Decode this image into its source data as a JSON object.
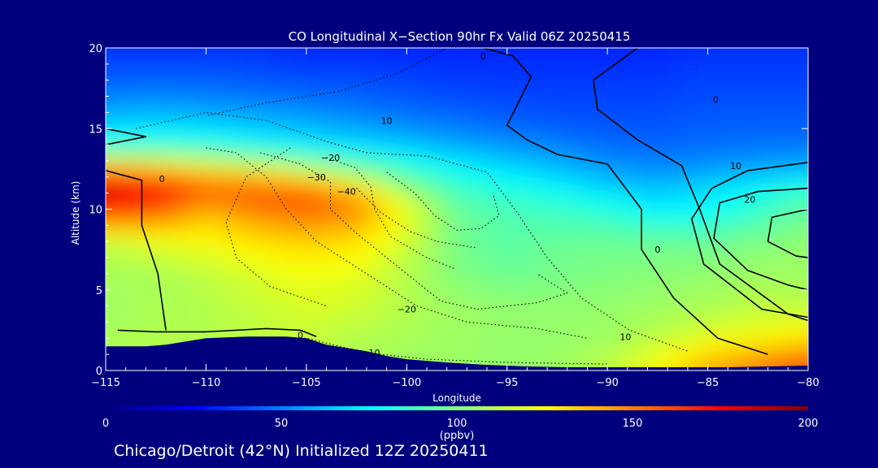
{
  "chart_data": {
    "type": "heatmap",
    "title": "CO Longitudinal X−Section 90hr  Fx Valid 06Z 20250415",
    "xlabel": "Longitude",
    "ylabel": "Altitude (km)",
    "xlim": [
      -115,
      -80
    ],
    "ylim": [
      0,
      20
    ],
    "x_ticks": [
      -115,
      -110,
      -105,
      -100,
      -95,
      -90,
      -85,
      -80
    ],
    "x_tick_labels": [
      "−115",
      "−110",
      "−105",
      "−100",
      "−95",
      "−90",
      "−85",
      "−80"
    ],
    "y_ticks": [
      0,
      5,
      10,
      15,
      20
    ],
    "y_tick_labels": [
      "0",
      "5",
      "10",
      "15",
      "20"
    ],
    "colorbar": {
      "min": 0,
      "max": 200,
      "ticks": [
        0,
        50,
        100,
        150,
        200
      ],
      "tick_labels": [
        "0",
        "50",
        "100",
        "150",
        "200"
      ],
      "unit_label": "(ppbv)",
      "colors": [
        "#00007f",
        "#0000ff",
        "#0080ff",
        "#00ffff",
        "#80ff80",
        "#ffff00",
        "#ff8000",
        "#ff0000",
        "#800000"
      ]
    },
    "co_field_ppbv": {
      "lons": [
        -115,
        -112.5,
        -110,
        -107.5,
        -105,
        -102.5,
        -100,
        -97.5,
        -95,
        -92.5,
        -90,
        -87.5,
        -85,
        -82.5,
        -80
      ],
      "alts": [
        0.5,
        2,
        4,
        6,
        8,
        10,
        11,
        12,
        13,
        14,
        15,
        16,
        17,
        18,
        20
      ],
      "values": [
        [
          110,
          110,
          110,
          110,
          112,
          108,
          106,
          105,
          104,
          106,
          112,
          125,
          140,
          150,
          160
        ],
        [
          108,
          110,
          110,
          112,
          114,
          110,
          108,
          106,
          104,
          104,
          106,
          112,
          120,
          125,
          130
        ],
        [
          106,
          108,
          110,
          114,
          118,
          116,
          110,
          106,
          104,
          104,
          104,
          106,
          108,
          112,
          112
        ],
        [
          108,
          108,
          112,
          118,
          122,
          120,
          110,
          100,
          96,
          98,
          100,
          102,
          104,
          106,
          106
        ],
        [
          112,
          120,
          124,
          130,
          134,
          130,
          116,
          98,
          92,
          96,
          96,
          96,
          96,
          100,
          104
        ],
        [
          170,
          160,
          140,
          150,
          156,
          150,
          122,
          96,
          90,
          86,
          82,
          72,
          74,
          84,
          94
        ],
        [
          185,
          176,
          158,
          162,
          160,
          142,
          108,
          88,
          82,
          78,
          70,
          66,
          72,
          80,
          88
        ],
        [
          170,
          160,
          145,
          140,
          130,
          110,
          92,
          80,
          74,
          68,
          60,
          56,
          60,
          64,
          68
        ],
        [
          120,
          118,
          112,
          104,
          94,
          86,
          78,
          70,
          64,
          58,
          52,
          50,
          52,
          54,
          56
        ],
        [
          80,
          82,
          80,
          76,
          72,
          68,
          64,
          58,
          54,
          50,
          46,
          44,
          46,
          48,
          48
        ],
        [
          70,
          72,
          70,
          66,
          62,
          58,
          54,
          50,
          46,
          44,
          42,
          42,
          44,
          44,
          44
        ],
        [
          58,
          60,
          58,
          56,
          54,
          50,
          46,
          44,
          42,
          40,
          40,
          40,
          42,
          42,
          42
        ],
        [
          50,
          52,
          50,
          48,
          46,
          44,
          42,
          40,
          38,
          38,
          38,
          38,
          40,
          40,
          40
        ],
        [
          44,
          44,
          44,
          42,
          40,
          40,
          38,
          36,
          36,
          36,
          36,
          36,
          38,
          38,
          38
        ],
        [
          34,
          34,
          34,
          34,
          32,
          32,
          32,
          32,
          32,
          32,
          32,
          32,
          34,
          34,
          34
        ]
      ]
    },
    "terrain_km": {
      "lons": [
        -115,
        -113,
        -112,
        -111,
        -110,
        -108,
        -106,
        -105,
        -104,
        -103,
        -102,
        -101,
        -100,
        -98,
        -96,
        -94,
        -92,
        -90,
        -87,
        -84,
        -82,
        -80
      ],
      "alt": [
        1.5,
        1.5,
        1.6,
        1.8,
        2.0,
        2.1,
        2.1,
        2.0,
        1.6,
        1.4,
        1.2,
        0.9,
        0.7,
        0.5,
        0.35,
        0.25,
        0.2,
        0.2,
        0.2,
        0.2,
        0.25,
        0.3
      ]
    },
    "contour_labels": [
      {
        "text": "0",
        "lon": -96.2,
        "alt": 19.5
      },
      {
        "text": "10",
        "lon": -101.0,
        "alt": 15.5
      },
      {
        "text": "−20",
        "lon": -103.8,
        "alt": 13.2
      },
      {
        "text": "−30",
        "lon": -104.5,
        "alt": 12.0
      },
      {
        "text": "−40",
        "lon": -103.0,
        "alt": 11.1
      },
      {
        "text": "0",
        "lon": -112.2,
        "alt": 11.9
      },
      {
        "text": "−20",
        "lon": -100.0,
        "alt": 3.8
      },
      {
        "text": "−10",
        "lon": -101.8,
        "alt": 1.1
      },
      {
        "text": "0",
        "lon": -105.3,
        "alt": 2.2
      },
      {
        "text": "10",
        "lon": -89.1,
        "alt": 2.1
      },
      {
        "text": "0",
        "lon": -87.5,
        "alt": 7.5
      },
      {
        "text": "20",
        "lon": -82.9,
        "alt": 10.6
      },
      {
        "text": "10",
        "lon": -83.6,
        "alt": 12.7
      },
      {
        "text": "0",
        "lon": -84.6,
        "alt": 16.8
      }
    ],
    "footer": "Chicago/Detroit (42°N) Initialized 12Z 20250411",
    "grid": false,
    "legend": "colorbar-bottom"
  }
}
